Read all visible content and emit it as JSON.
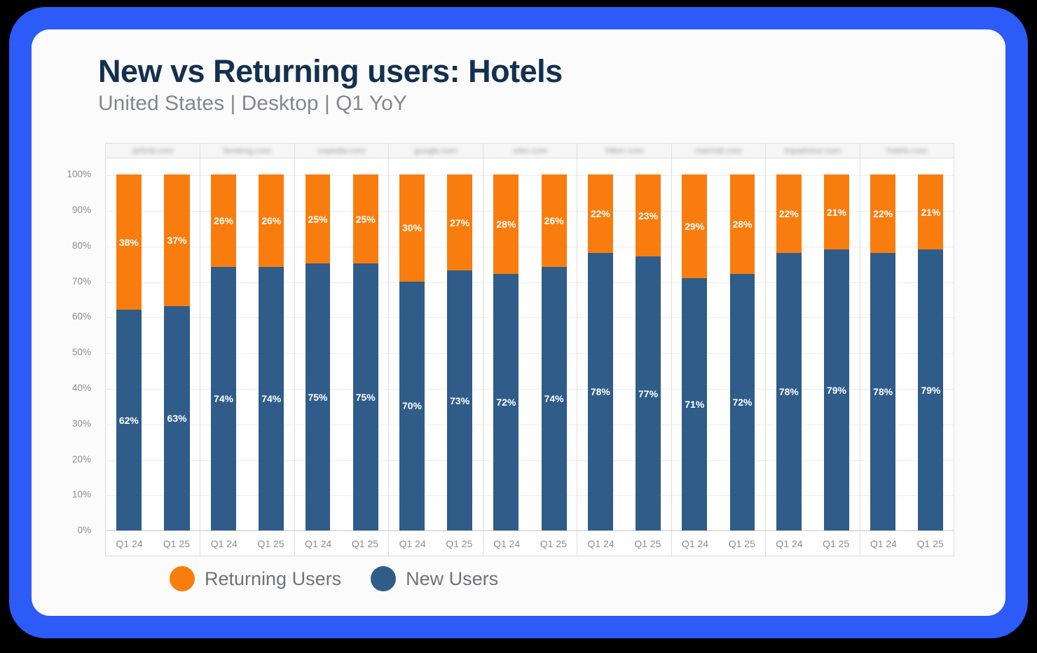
{
  "header": {
    "title": "New vs Returning users: Hotels",
    "subtitle": "United States | Desktop | Q1 YoY"
  },
  "legend": [
    {
      "label": "Returning Users",
      "color": "#F97D0E"
    },
    {
      "label": "New Users",
      "color": "#2F5C89"
    }
  ],
  "colors": {
    "returning": "#F97D0E",
    "new": "#2F5C89",
    "frame_blue": "#2D5BF8",
    "title_navy": "#14304F"
  },
  "chart_data": {
    "type": "bar",
    "stacked": true,
    "unit": "%",
    "title": "New vs Returning users: Hotels",
    "subtitle": "United States | Desktop | Q1 YoY",
    "grid": true,
    "legend_position": "bottom",
    "ylim": [
      0,
      100
    ],
    "y_ticks": [
      "0%",
      "10%",
      "20%",
      "30%",
      "40%",
      "50%",
      "60%",
      "70%",
      "80%",
      "90%",
      "100%"
    ],
    "groups": [
      "airbnb.com",
      "booking.com",
      "expedia.com",
      "google.com",
      "vrbo.com",
      "hilton.com",
      "marriott.com",
      "tripadvisor.com",
      "hotels.com"
    ],
    "group_labels_blurred": true,
    "x_labels_per_group": [
      "Q1 24",
      "Q1 25"
    ],
    "series": [
      {
        "name": "New Users",
        "color": "#2F5C89",
        "values": [
          [
            62,
            63
          ],
          [
            74,
            74
          ],
          [
            75,
            75
          ],
          [
            70,
            73
          ],
          [
            72,
            74
          ],
          [
            78,
            77
          ],
          [
            71,
            72
          ],
          [
            78,
            79
          ],
          [
            78,
            79
          ]
        ]
      },
      {
        "name": "Returning Users",
        "color": "#F97D0E",
        "values": [
          [
            38,
            37
          ],
          [
            26,
            26
          ],
          [
            25,
            25
          ],
          [
            30,
            27
          ],
          [
            28,
            26
          ],
          [
            22,
            23
          ],
          [
            29,
            28
          ],
          [
            22,
            21
          ],
          [
            22,
            21
          ]
        ]
      }
    ]
  }
}
